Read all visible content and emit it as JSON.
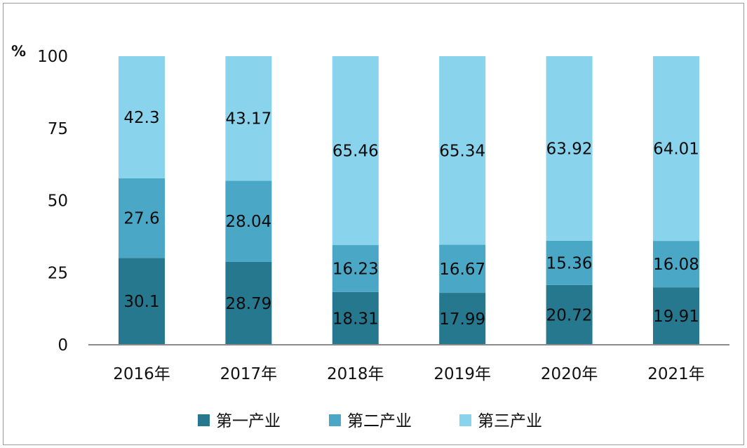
{
  "chart_data": {
    "type": "bar",
    "stacked": true,
    "ylabel": "%",
    "ylim": [
      0,
      100
    ],
    "yticks": [
      0,
      25,
      50,
      75,
      100
    ],
    "categories": [
      "2016年",
      "2017年",
      "2018年",
      "2019年",
      "2020年",
      "2021年"
    ],
    "series": [
      {
        "name": "第一产业",
        "color": "#26788f",
        "values": [
          30.1,
          28.79,
          18.31,
          17.99,
          20.72,
          19.91
        ]
      },
      {
        "name": "第二产业",
        "color": "#4aa8c6",
        "values": [
          27.6,
          28.04,
          16.23,
          16.67,
          15.36,
          16.08
        ]
      },
      {
        "name": "第三产业",
        "color": "#89d4ec",
        "values": [
          42.3,
          43.17,
          65.46,
          65.34,
          63.92,
          64.01
        ]
      }
    ],
    "data_labels": [
      [
        "30.1",
        "28.79",
        "18.31",
        "17.99",
        "20.72",
        "19.91"
      ],
      [
        "27.6",
        "28.04",
        "16.23",
        "16.67",
        "15.36",
        "16.08"
      ],
      [
        "42.3",
        "43.17",
        "65.46",
        "65.34",
        "63.92",
        "64.01"
      ]
    ],
    "legend_position": "bottom",
    "grid": false
  }
}
